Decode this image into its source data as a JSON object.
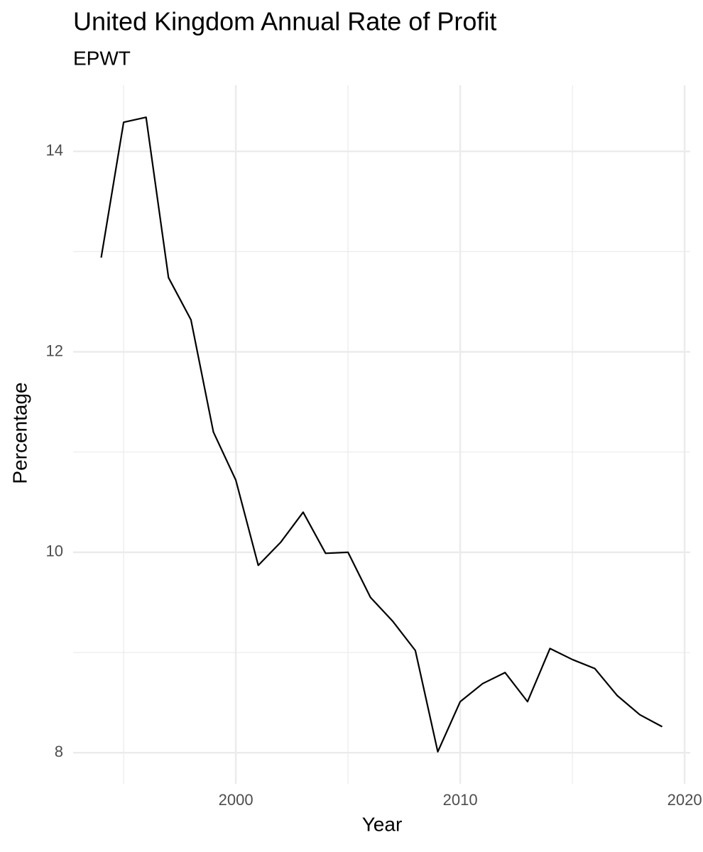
{
  "chart_data": {
    "type": "line",
    "title": "United Kingdom Annual Rate of Profit",
    "subtitle": "EPWT",
    "x_label": "Year",
    "y_label": "Percentage",
    "x": [
      1994,
      1995,
      1996,
      1997,
      1998,
      1999,
      2000,
      2001,
      2002,
      2003,
      2004,
      2005,
      2006,
      2007,
      2008,
      2009,
      2010,
      2011,
      2012,
      2013,
      2014,
      2015,
      2016,
      2017,
      2018,
      2019
    ],
    "series": [
      {
        "name": "Rate of profit",
        "color": "#000000",
        "values": [
          12.94,
          14.29,
          14.34,
          12.74,
          12.32,
          11.2,
          10.72,
          9.87,
          10.1,
          10.4,
          9.99,
          10.0,
          9.55,
          9.31,
          9.02,
          8.01,
          8.51,
          8.69,
          8.8,
          8.51,
          9.04,
          8.93,
          8.84,
          8.57,
          8.38,
          8.26
        ]
      }
    ],
    "xlim": [
      1992.75,
      2020.25
    ],
    "ylim": [
      7.69,
      14.66
    ],
    "xticks": [
      2000,
      2010,
      2020
    ],
    "yticks": [
      8,
      10,
      12,
      14
    ],
    "x_minor_ticks": [
      1995,
      2005,
      2015
    ],
    "y_minor_ticks": [
      9,
      11,
      13
    ],
    "grid": true
  }
}
